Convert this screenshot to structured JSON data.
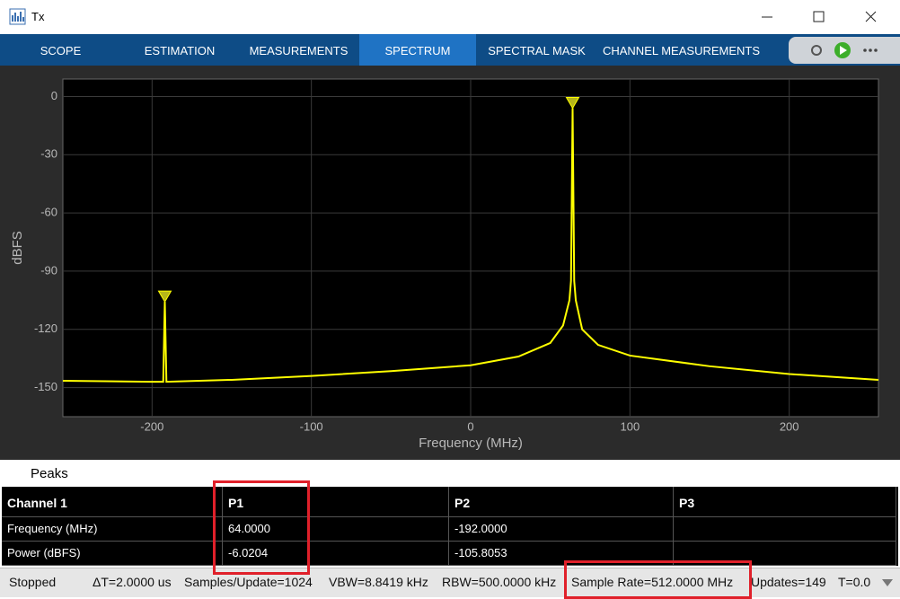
{
  "window": {
    "title": "Tx"
  },
  "tabs": [
    "SCOPE",
    "ESTIMATION",
    "MEASUREMENTS",
    "SPECTRUM",
    "SPECTRAL MASK",
    "CHANNEL MEASUREMENTS"
  ],
  "active_tab": 3,
  "chart_data": {
    "type": "line",
    "x_label": "Frequency (MHz)",
    "y_label": "dBFS",
    "x": [
      -256,
      -200,
      -193,
      -192,
      -191,
      -150,
      -100,
      -50,
      0,
      30,
      50,
      58,
      62,
      63,
      64,
      65,
      66,
      70,
      80,
      100,
      150,
      200,
      256
    ],
    "series": [
      {
        "color": "#ffff00",
        "values": [
          -146.5,
          -147,
          -147,
          -105.8,
          -147,
          -146,
          -144,
          -141.5,
          -138.5,
          -134,
          -127,
          -118,
          -105,
          -95,
          -6.0,
          -95,
          -105,
          -120,
          -128,
          -133.5,
          -139,
          -143,
          -146
        ]
      }
    ],
    "peak_markers": [
      {
        "x": 64,
        "y": -6.0204
      },
      {
        "x": -192,
        "y": -105.8053
      }
    ],
    "xlim": [
      -256,
      256
    ],
    "xticks": [
      -200,
      -100,
      0,
      100,
      200
    ],
    "ylim": [
      -165,
      9
    ],
    "yticks": [
      -150,
      -120,
      -90,
      -60,
      -30,
      0
    ],
    "grid": true
  },
  "peaks_panel": {
    "title": "Peaks",
    "columns": [
      "Channel 1",
      "P1",
      "P2",
      "P3"
    ],
    "rows": [
      [
        "Frequency (MHz)",
        "64.0000",
        "-192.0000"
      ],
      [
        "Power (dBFS)",
        "-6.0204",
        "-105.8053"
      ]
    ]
  },
  "status": [
    "Stopped",
    "ΔT=2.0000 us",
    "Samples/Update=1024",
    "VBW=8.8419 kHz",
    "RBW=500.0000 kHz",
    "Sample Rate=512.0000 MHz",
    "Updates=149",
    "T=0.0"
  ]
}
